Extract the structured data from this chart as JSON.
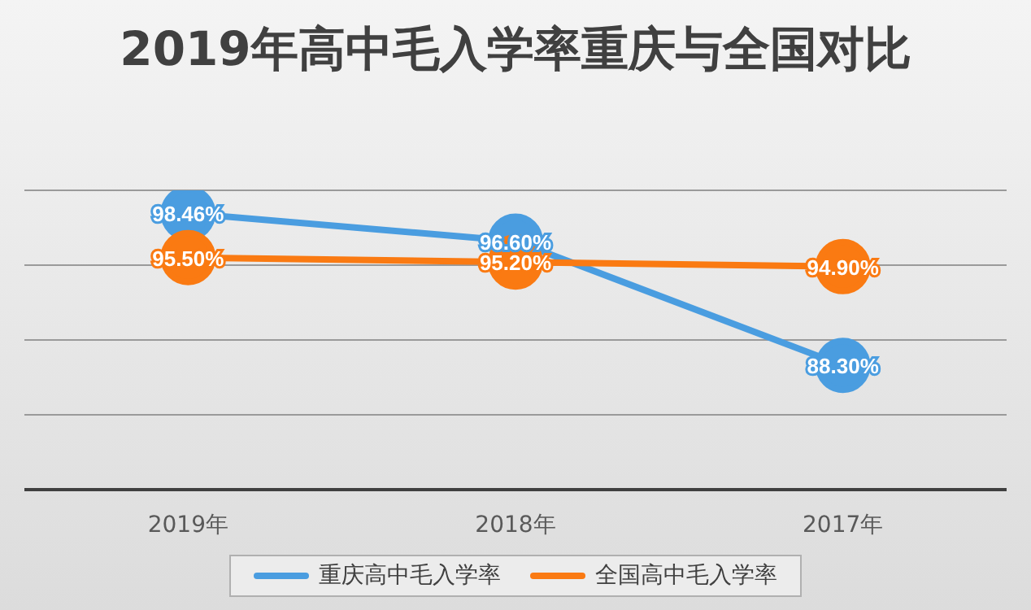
{
  "chart_data": {
    "type": "line",
    "title": "2019年高中毛入学率重庆与全国对比",
    "categories": [
      "2019年",
      "2018年",
      "2017年"
    ],
    "series": [
      {
        "name": "重庆高中毛入学率",
        "color": "#4a9de0",
        "values": [
          98.46,
          96.6,
          88.3
        ],
        "value_labels": [
          "98.46%",
          "96.60%",
          "88.30%"
        ]
      },
      {
        "name": "全国高中毛入学率",
        "color": "#fa7a12",
        "values": [
          95.5,
          95.2,
          94.9
        ],
        "value_labels": [
          "95.50%",
          "95.20%",
          "94.90%"
        ]
      }
    ],
    "ylim": [
      80,
      100
    ],
    "tick_labels": "x",
    "grid": "y",
    "legend": "bottom",
    "marker": "circle",
    "line_style": "solid"
  }
}
